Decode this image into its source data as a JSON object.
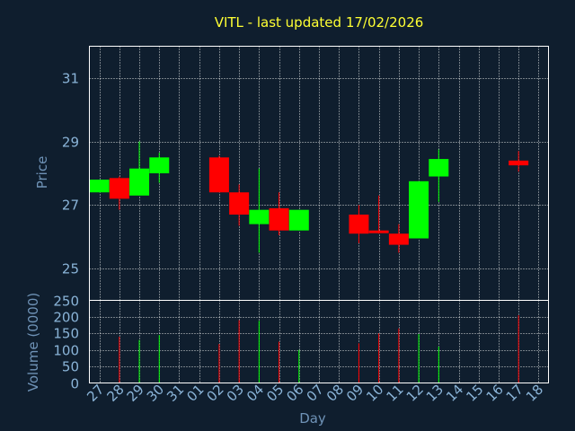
{
  "chart_data": {
    "type": "candlestick",
    "title": "VITL - last updated 17/02/2026",
    "xlabel": "Day",
    "ylabel": "Price",
    "volume_label": "Volume (0000)",
    "x_ticks": [
      "27",
      "28",
      "29",
      "30",
      "31",
      "01",
      "02",
      "03",
      "04",
      "05",
      "06",
      "07",
      "08",
      "09",
      "10",
      "11",
      "12",
      "13",
      "14",
      "15",
      "16",
      "17",
      "18"
    ],
    "price_ylim": [
      24,
      32
    ],
    "price_ticks": [
      "25",
      "27",
      "29",
      "31"
    ],
    "volume_ylim": [
      0,
      250
    ],
    "volume_ticks": [
      "0",
      "50",
      "100",
      "150",
      "200",
      "250"
    ],
    "grid": true,
    "colors": {
      "up": "#00ff00",
      "down": "#ff0000",
      "background": "#0f1e2e",
      "title": "#ffff33",
      "axis": "#8ab4d8"
    },
    "candles": [
      {
        "day": "27",
        "open": 27.4,
        "high": 27.8,
        "low": 27.4,
        "close": 27.8,
        "volume": 0
      },
      {
        "day": "28",
        "open": 27.85,
        "high": 27.9,
        "low": 26.85,
        "close": 27.2,
        "volume": 140
      },
      {
        "day": "29",
        "open": 27.3,
        "high": 29.0,
        "low": 27.3,
        "close": 28.15,
        "volume": 130
      },
      {
        "day": "30",
        "open": 28.0,
        "high": 28.65,
        "low": 27.7,
        "close": 28.5,
        "volume": 145
      },
      {
        "day": "02",
        "open": 28.5,
        "high": 28.55,
        "low": 27.4,
        "close": 27.4,
        "volume": 118
      },
      {
        "day": "03",
        "open": 27.4,
        "high": 27.65,
        "low": 26.35,
        "close": 26.7,
        "volume": 190
      },
      {
        "day": "04",
        "open": 26.4,
        "high": 28.15,
        "low": 25.5,
        "close": 26.85,
        "volume": 188
      },
      {
        "day": "05",
        "open": 26.9,
        "high": 27.4,
        "low": 26.05,
        "close": 26.2,
        "volume": 125
      },
      {
        "day": "06",
        "open": 26.2,
        "high": 26.85,
        "low": 26.2,
        "close": 26.85,
        "volume": 100
      },
      {
        "day": "09",
        "open": 26.7,
        "high": 27.0,
        "low": 25.8,
        "close": 26.1,
        "volume": 120
      },
      {
        "day": "10",
        "open": 26.2,
        "high": 27.3,
        "low": 26.1,
        "close": 26.15,
        "volume": 150
      },
      {
        "day": "11",
        "open": 26.1,
        "high": 26.4,
        "low": 25.5,
        "close": 25.75,
        "volume": 165
      },
      {
        "day": "12",
        "open": 25.95,
        "high": 27.75,
        "low": 25.95,
        "close": 27.75,
        "volume": 148
      },
      {
        "day": "13",
        "open": 27.9,
        "high": 28.75,
        "low": 27.1,
        "close": 28.45,
        "volume": 110
      },
      {
        "day": "17",
        "open": 28.4,
        "high": 28.7,
        "low": 28.05,
        "close": 28.25,
        "volume": 205
      }
    ]
  }
}
